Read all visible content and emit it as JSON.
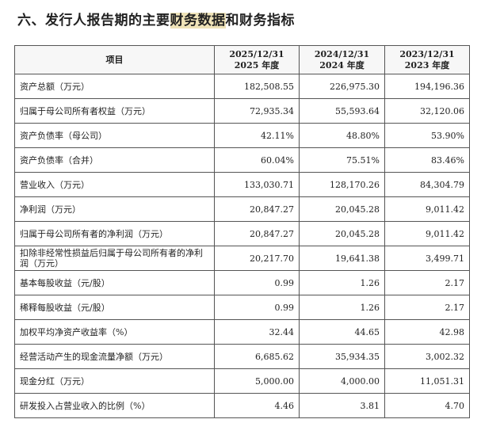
{
  "header": {
    "title_parts": [
      "六、发行人报告期的主要",
      "财务数据",
      "和财务指标"
    ]
  },
  "table": {
    "columns": [
      [
        "项目"
      ],
      [
        "2025/12/31",
        "2025 年度"
      ],
      [
        "2024/12/31",
        "2024 年度"
      ],
      [
        "2023/12/31",
        "2023 年度"
      ]
    ],
    "rows": [
      [
        "资产总额（万元）",
        "182,508.55",
        "226,975.30",
        "194,196.36"
      ],
      [
        "归属于母公司所有者权益（万元）",
        "72,935.34",
        "55,593.64",
        "32,120.06"
      ],
      [
        "资产负债率（母公司）",
        "42.11%",
        "48.80%",
        "53.90%"
      ],
      [
        "资产负债率（合并）",
        "60.04%",
        "75.51%",
        "83.46%"
      ],
      [
        "营业收入（万元）",
        "133,030.71",
        "128,170.26",
        "84,304.79"
      ],
      [
        "净利润（万元）",
        "20,847.27",
        "20,045.28",
        "9,011.42"
      ],
      [
        "归属于母公司所有者的净利润（万元）",
        "20,847.27",
        "20,045.28",
        "9,011.42"
      ],
      [
        "扣除非经常性损益后归属于母公司所有者的净利润（万元）",
        "20,217.70",
        "19,641.38",
        "3,499.71"
      ],
      [
        "基本每股收益（元/股）",
        "0.99",
        "1.26",
        "2.17"
      ],
      [
        "稀释每股收益（元/股）",
        "0.99",
        "1.26",
        "2.17"
      ],
      [
        "加权平均净资产收益率（%）",
        "32.44",
        "44.65",
        "42.98"
      ],
      [
        "经营活动产生的现金流量净额（万元）",
        "6,685.62",
        "35,934.35",
        "3,002.32"
      ],
      [
        "现金分红（万元）",
        "5,000.00",
        "4,000.00",
        "11,051.31"
      ],
      [
        "研发投入占营业收入的比例（%）",
        "4.46",
        "3.81",
        "4.70"
      ]
    ]
  }
}
